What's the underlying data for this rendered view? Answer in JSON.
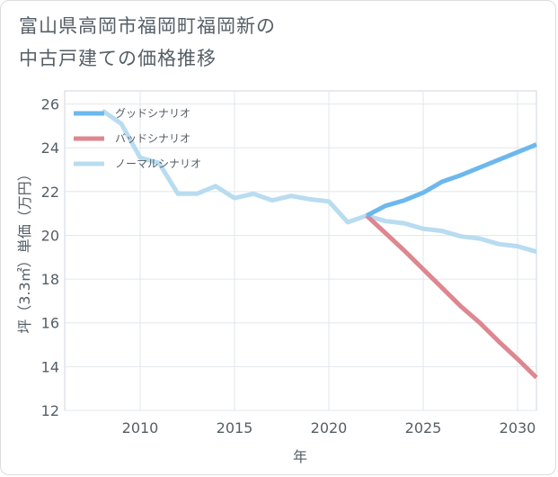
{
  "title_line1": "富山県高岡市福岡町福岡新の",
  "title_line2": "中古戸建ての価格推移",
  "chart_data": {
    "type": "line",
    "xlabel": "年",
    "ylabel": "坪（3.3㎡）単価（万円）",
    "xlim": [
      2006,
      2031
    ],
    "ylim": [
      12,
      26.6
    ],
    "xticks": [
      2010,
      2015,
      2020,
      2025,
      2030
    ],
    "yticks": [
      12,
      14,
      16,
      18,
      20,
      22,
      24,
      26
    ],
    "grid": true,
    "legend_position": "top-left",
    "series": [
      {
        "name": "グッドシナリオ",
        "color": "#6cb8ee",
        "x": [
          2022,
          2023,
          2024,
          2025,
          2026,
          2027,
          2028,
          2029,
          2030,
          2031
        ],
        "y": [
          20.9,
          21.35,
          21.6,
          21.95,
          22.45,
          22.75,
          23.1,
          23.45,
          23.8,
          24.15
        ]
      },
      {
        "name": "バッドシナリオ",
        "color": "#dd8790",
        "x": [
          2022,
          2023,
          2024,
          2025,
          2026,
          2027,
          2028,
          2029,
          2030,
          2031
        ],
        "y": [
          20.9,
          20.1,
          19.3,
          18.45,
          17.6,
          16.75,
          16.0,
          15.15,
          14.35,
          13.5
        ]
      },
      {
        "name": "ノーマルシナリオ",
        "color": "#b8dcf0",
        "x": [
          2008,
          2009,
          2010,
          2011,
          2012,
          2013,
          2014,
          2015,
          2016,
          2017,
          2018,
          2019,
          2020,
          2021,
          2022,
          2023,
          2024,
          2025,
          2026,
          2027,
          2028,
          2029,
          2030,
          2031
        ],
        "y": [
          25.7,
          25.1,
          23.55,
          23.3,
          21.9,
          21.9,
          22.25,
          21.7,
          21.9,
          21.6,
          21.8,
          21.65,
          21.55,
          20.6,
          20.9,
          20.65,
          20.55,
          20.3,
          20.2,
          19.95,
          19.85,
          19.6,
          19.5,
          19.25
        ]
      }
    ]
  }
}
